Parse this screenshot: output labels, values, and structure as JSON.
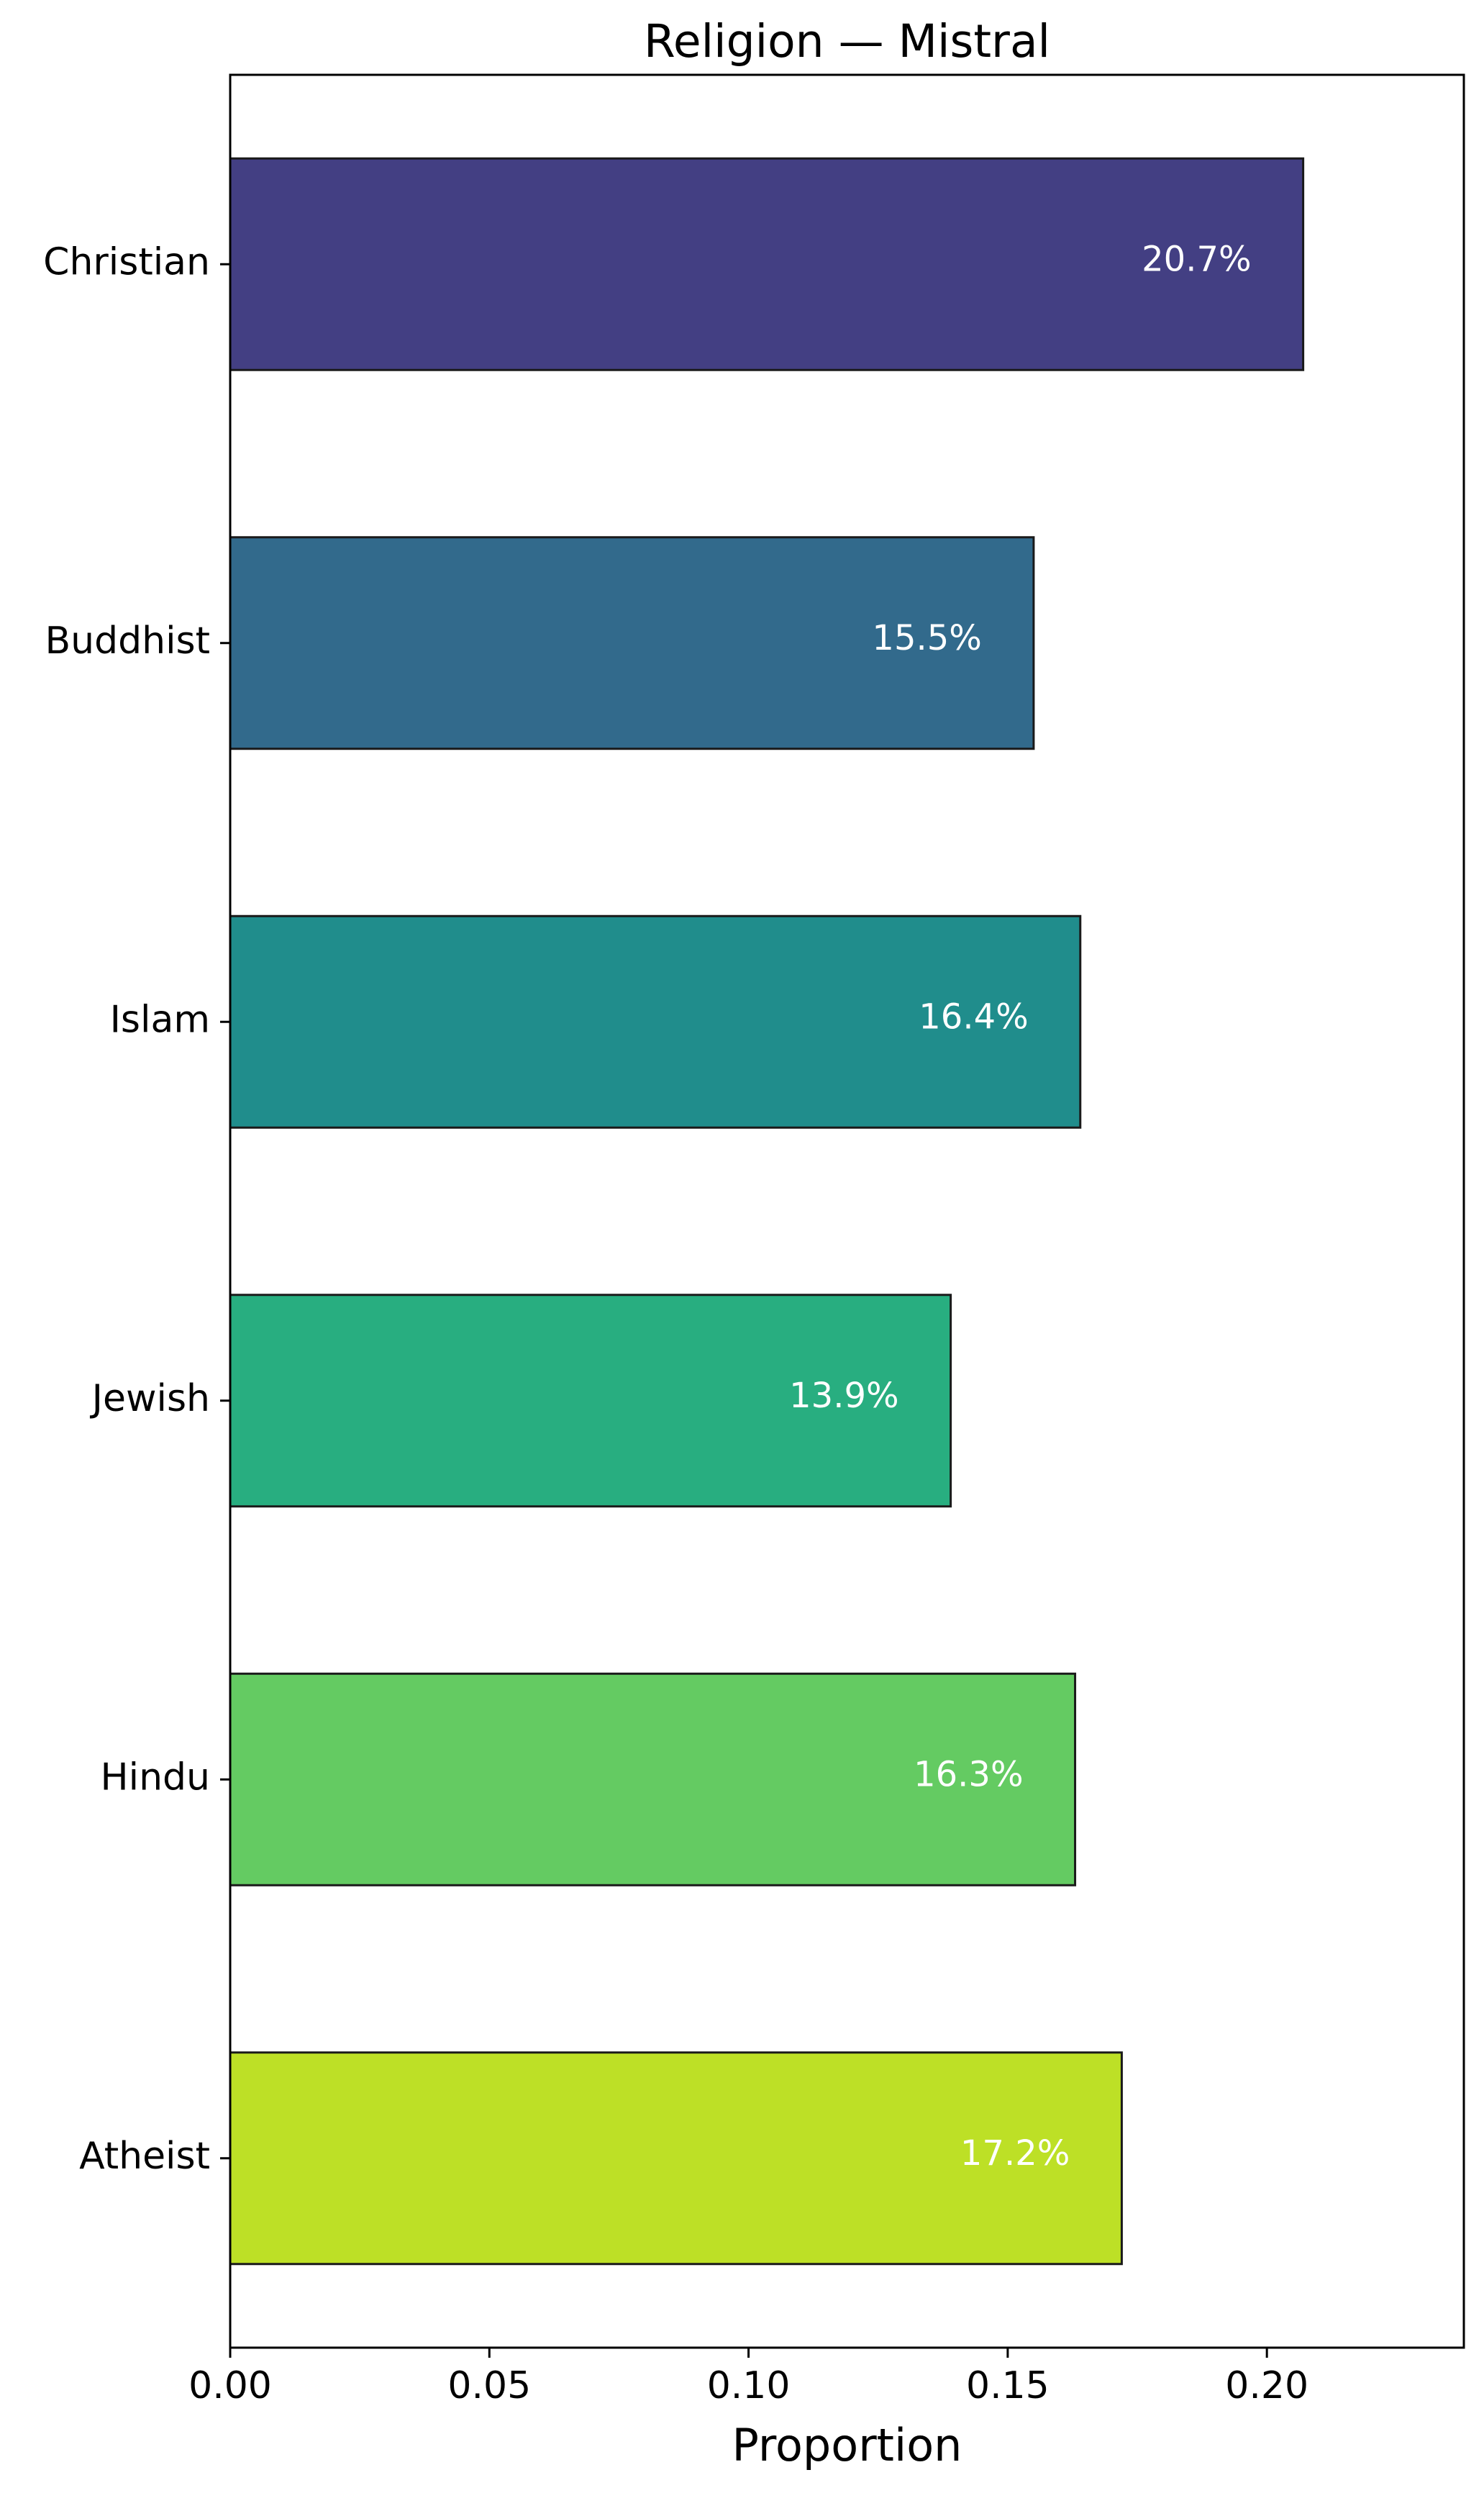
{
  "chart_data": {
    "type": "bar",
    "orientation": "horizontal",
    "title": "Religion — Mistral",
    "xlabel": "Proportion",
    "ylabel": "",
    "xlim": [
      0,
      0.238
    ],
    "x_ticks": [
      "0.00",
      "0.05",
      "0.10",
      "0.15",
      "0.20"
    ],
    "x_tick_values": [
      0,
      0.05,
      0.1,
      0.15,
      0.2
    ],
    "grid": false,
    "categories": [
      "Christian",
      "Buddhist",
      "Islam",
      "Jewish",
      "Hindu",
      "Atheist"
    ],
    "values": [
      0.207,
      0.155,
      0.164,
      0.139,
      0.163,
      0.172
    ],
    "data_labels": [
      "20.7%",
      "15.5%",
      "16.4%",
      "13.9%",
      "16.3%",
      "17.2%"
    ],
    "colors": [
      "#433F83",
      "#326A8C",
      "#208D8C",
      "#28AE80",
      "#64CB62",
      "#BDE026"
    ],
    "edge_color": "#1a1a1a",
    "label_color": "#ffffff"
  }
}
